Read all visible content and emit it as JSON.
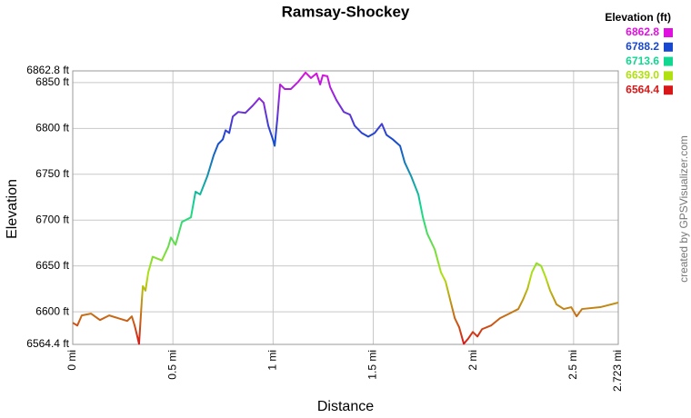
{
  "chart_data": {
    "type": "line",
    "title": "Ramsay-Shockey",
    "xlabel": "Distance",
    "ylabel": "Elevation",
    "x": [
      0,
      0.023,
      0.045,
      0.091,
      0.136,
      0.182,
      0.227,
      0.272,
      0.295,
      0.309,
      0.318,
      0.331,
      0.345,
      0.35,
      0.363,
      0.377,
      0.399,
      0.445,
      0.477,
      0.49,
      0.513,
      0.545,
      0.59,
      0.613,
      0.636,
      0.672,
      0.704,
      0.726,
      0.749,
      0.763,
      0.781,
      0.799,
      0.826,
      0.862,
      0.899,
      0.931,
      0.953,
      0.976,
      0.999,
      1.008,
      1.021,
      1.035,
      1.058,
      1.089,
      1.126,
      1.162,
      1.189,
      1.217,
      1.235,
      1.248,
      1.271,
      1.285,
      1.316,
      1.353,
      1.384,
      1.407,
      1.443,
      1.475,
      1.507,
      1.543,
      1.566,
      1.598,
      1.634,
      1.657,
      1.689,
      1.725,
      1.748,
      1.77,
      1.807,
      1.838,
      1.861,
      1.884,
      1.907,
      1.929,
      1.952,
      1.975,
      1.997,
      2.02,
      2.043,
      2.088,
      2.133,
      2.179,
      2.224,
      2.247,
      2.27,
      2.292,
      2.315,
      2.338,
      2.36,
      2.383,
      2.415,
      2.451,
      2.488,
      2.515,
      2.542,
      2.633,
      2.723
    ],
    "values": [
      6588,
      6585,
      6596,
      6598,
      6591,
      6596,
      6593,
      6590,
      6595,
      6585,
      6577,
      6565,
      6613,
      6628,
      6623,
      6643,
      6660,
      6656,
      6671,
      6681,
      6673,
      6698,
      6703,
      6731,
      6728,
      6748,
      6771,
      6783,
      6788,
      6798,
      6795,
      6813,
      6818,
      6817,
      6825,
      6833,
      6828,
      6803,
      6788,
      6781,
      6810,
      6848,
      6843,
      6843,
      6851,
      6861,
      6855,
      6860,
      6848,
      6858,
      6857,
      6845,
      6831,
      6818,
      6815,
      6803,
      6795,
      6791,
      6795,
      6805,
      6793,
      6788,
      6781,
      6763,
      6748,
      6728,
      6703,
      6685,
      6668,
      6643,
      6633,
      6613,
      6593,
      6583,
      6565,
      6571,
      6578,
      6573,
      6581,
      6585,
      6593,
      6598,
      6603,
      6613,
      6625,
      6643,
      6653,
      6650,
      6638,
      6623,
      6608,
      6603,
      6605,
      6595,
      6603,
      6605,
      6610
    ],
    "xlim": [
      0,
      2.723
    ],
    "xticks": [
      {
        "value": 0,
        "label": "0 mi"
      },
      {
        "value": 0.5,
        "label": "0.5 mi"
      },
      {
        "value": 1,
        "label": "1 mi"
      },
      {
        "value": 1.5,
        "label": "1.5 mi"
      },
      {
        "value": 2,
        "label": "2 mi"
      },
      {
        "value": 2.5,
        "label": "2.5 mi"
      },
      {
        "value": 2.723,
        "label": "2.723 mi"
      }
    ],
    "ylim": [
      6564.4,
      6862.8
    ],
    "yticks": [
      {
        "value": 6564.4,
        "label": "6564.4 ft"
      },
      {
        "value": 6600,
        "label": "6600 ft"
      },
      {
        "value": 6650,
        "label": "6650 ft"
      },
      {
        "value": 6700,
        "label": "6700 ft"
      },
      {
        "value": 6750,
        "label": "6750 ft"
      },
      {
        "value": 6800,
        "label": "6800 ft"
      },
      {
        "value": 6850,
        "label": "6850 ft"
      },
      {
        "value": 6862.8,
        "label": "6862.8 ft"
      }
    ],
    "grid": true,
    "legend": {
      "title": "Elevation (ft)",
      "entries": [
        {
          "value": 6862.8,
          "label": "6862.8",
          "color": "#e010e0"
        },
        {
          "value": 6788.2,
          "label": "6788.2",
          "color": "#1848d0"
        },
        {
          "value": 6713.6,
          "label": "6713.6",
          "color": "#10d890"
        },
        {
          "value": 6639.0,
          "label": "6639.0",
          "color": "#b0e010"
        },
        {
          "value": 6564.4,
          "label": "6564.4",
          "color": "#d81818"
        }
      ]
    }
  },
  "credit": "created by GPSVisualizer.com"
}
